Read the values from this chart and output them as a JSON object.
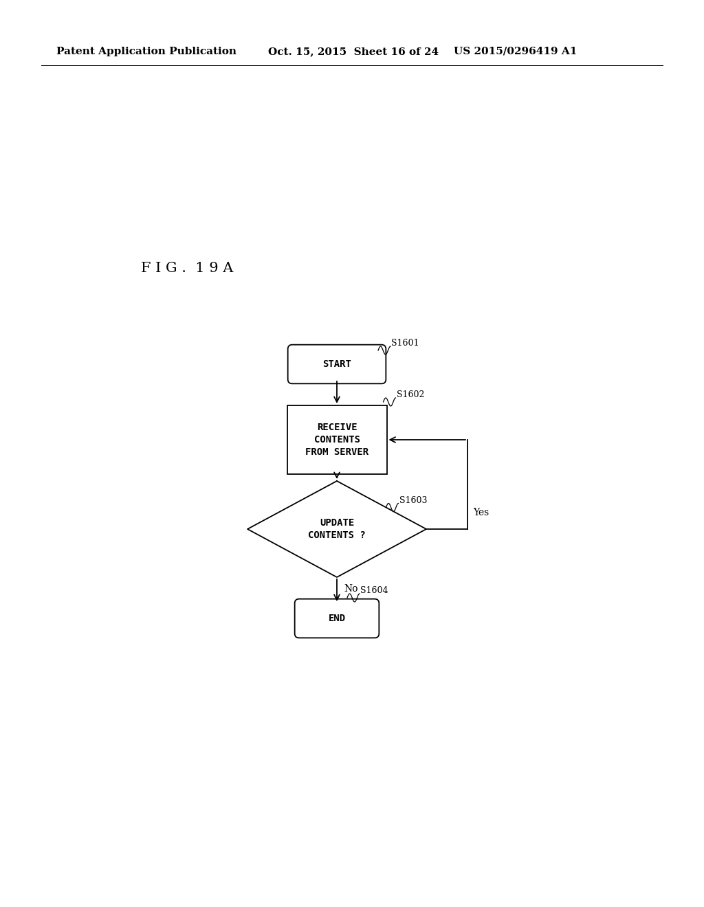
{
  "bg_color": "#ffffff",
  "header_left": "Patent Application Publication",
  "header_mid": "Oct. 15, 2015  Sheet 16 of 24",
  "header_right": "US 2015/0296419 A1",
  "fig_label": "F I G .  1 9 A",
  "start_label": "START",
  "receive_label": "RECEIVE\nCONTENTS\nFROM SERVER",
  "decision_label": "UPDATE\nCONTENTS ?",
  "end_label": "END",
  "s1601": "S1601",
  "s1602": "S1602",
  "s1603": "S1603",
  "s1604": "S1604",
  "yes_text": "Yes",
  "no_text": "No",
  "font_size_header": 11,
  "font_size_node": 10,
  "font_size_step": 9,
  "font_size_fig": 15,
  "font_size_yn": 10
}
